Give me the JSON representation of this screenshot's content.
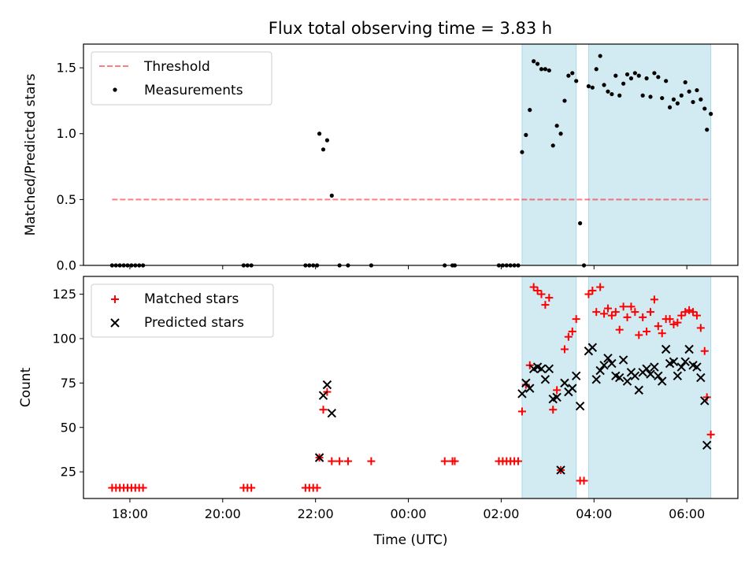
{
  "chart_data": {
    "type": "scatter",
    "title": "Flux total observing time = 3.83 h",
    "xlabel": "Time (UTC)",
    "xticks": [
      "18:00",
      "20:00",
      "22:00",
      "00:00",
      "02:00",
      "04:00",
      "06:00"
    ],
    "shaded_intervals": [
      [
        "02:27",
        "03:37"
      ],
      [
        "03:53",
        "06:31"
      ]
    ],
    "colors": {
      "shade": "#add8e6",
      "threshold": "#ff0000",
      "matched": "#ff0000",
      "predicted": "#000000",
      "measurements": "#000000"
    },
    "panels": [
      {
        "ylabel": "Matched/Predicted stars",
        "ylim": [
          0,
          1.68
        ],
        "yticks": [
          "0.0",
          "0.5",
          "1.0",
          "1.5"
        ],
        "legend_position": "upper-left",
        "series": [
          {
            "name": "Threshold",
            "kind": "dashed-line",
            "y": 0.5,
            "x_range": [
              "17:37",
              "06:31"
            ]
          },
          {
            "name": "Measurements",
            "kind": "scatter",
            "points": [
              [
                "17:37",
                0
              ],
              [
                "17:42",
                0
              ],
              [
                "17:47",
                0
              ],
              [
                "17:52",
                0
              ],
              [
                "17:57",
                0
              ],
              [
                "18:02",
                0
              ],
              [
                "18:07",
                0
              ],
              [
                "18:12",
                0
              ],
              [
                "18:17",
                0
              ],
              [
                "20:27",
                0
              ],
              [
                "20:32",
                0
              ],
              [
                "20:37",
                0
              ],
              [
                "21:47",
                0
              ],
              [
                "21:52",
                0
              ],
              [
                "21:57",
                0
              ],
              [
                "22:02",
                0
              ],
              [
                "22:05",
                1.0
              ],
              [
                "22:10",
                0.88
              ],
              [
                "22:15",
                0.95
              ],
              [
                "22:21",
                0.53
              ],
              [
                "22:31",
                0
              ],
              [
                "22:42",
                0
              ],
              [
                "23:12",
                0
              ],
              [
                "00:47",
                0
              ],
              [
                "00:57",
                0
              ],
              [
                "01:00",
                0
              ],
              [
                "01:57",
                0
              ],
              [
                "02:02",
                0
              ],
              [
                "02:07",
                0
              ],
              [
                "02:12",
                0
              ],
              [
                "02:17",
                0
              ],
              [
                "02:22",
                0
              ],
              [
                "02:27",
                0.86
              ],
              [
                "02:32",
                0.99
              ],
              [
                "02:37",
                1.18
              ],
              [
                "02:42",
                1.55
              ],
              [
                "02:47",
                1.53
              ],
              [
                "02:52",
                1.49
              ],
              [
                "02:57",
                1.49
              ],
              [
                "03:02",
                1.48
              ],
              [
                "03:07",
                0.91
              ],
              [
                "03:12",
                1.06
              ],
              [
                "03:17",
                1.0
              ],
              [
                "03:22",
                1.25
              ],
              [
                "03:27",
                1.44
              ],
              [
                "03:32",
                1.46
              ],
              [
                "03:37",
                1.4
              ],
              [
                "03:42",
                0.32
              ],
              [
                "03:47",
                0.0
              ],
              [
                "03:53",
                1.36
              ],
              [
                "03:58",
                1.35
              ],
              [
                "04:03",
                1.49
              ],
              [
                "04:08",
                1.59
              ],
              [
                "04:13",
                1.37
              ],
              [
                "04:18",
                1.32
              ],
              [
                "04:23",
                1.3
              ],
              [
                "04:28",
                1.44
              ],
              [
                "04:33",
                1.29
              ],
              [
                "04:38",
                1.38
              ],
              [
                "04:43",
                1.45
              ],
              [
                "04:48",
                1.42
              ],
              [
                "04:53",
                1.46
              ],
              [
                "04:58",
                1.44
              ],
              [
                "05:03",
                1.29
              ],
              [
                "05:08",
                1.42
              ],
              [
                "05:13",
                1.28
              ],
              [
                "05:18",
                1.46
              ],
              [
                "05:23",
                1.43
              ],
              [
                "05:28",
                1.27
              ],
              [
                "05:33",
                1.4
              ],
              [
                "05:38",
                1.2
              ],
              [
                "05:43",
                1.26
              ],
              [
                "05:48",
                1.23
              ],
              [
                "05:53",
                1.29
              ],
              [
                "05:58",
                1.39
              ],
              [
                "06:03",
                1.32
              ],
              [
                "06:08",
                1.24
              ],
              [
                "06:13",
                1.33
              ],
              [
                "06:18",
                1.26
              ],
              [
                "06:23",
                1.19
              ],
              [
                "06:26",
                1.03
              ],
              [
                "06:31",
                1.15
              ]
            ]
          }
        ]
      },
      {
        "ylabel": "Count",
        "ylim": [
          10,
          135
        ],
        "yticks": [
          "25",
          "50",
          "75",
          "100",
          "125"
        ],
        "legend_position": "upper-left",
        "series": [
          {
            "name": "Matched stars",
            "marker": "+",
            "points": [
              [
                "17:37",
                16
              ],
              [
                "17:42",
                16
              ],
              [
                "17:47",
                16
              ],
              [
                "17:52",
                16
              ],
              [
                "17:57",
                16
              ],
              [
                "18:02",
                16
              ],
              [
                "18:07",
                16
              ],
              [
                "18:12",
                16
              ],
              [
                "18:17",
                16
              ],
              [
                "20:27",
                16
              ],
              [
                "20:32",
                16
              ],
              [
                "20:37",
                16
              ],
              [
                "21:47",
                16
              ],
              [
                "21:52",
                16
              ],
              [
                "21:57",
                16
              ],
              [
                "22:02",
                16
              ],
              [
                "22:05",
                33
              ],
              [
                "22:10",
                60
              ],
              [
                "22:15",
                70
              ],
              [
                "22:21",
                31
              ],
              [
                "22:31",
                31
              ],
              [
                "22:42",
                31
              ],
              [
                "23:12",
                31
              ],
              [
                "00:47",
                31
              ],
              [
                "00:57",
                31
              ],
              [
                "01:00",
                31
              ],
              [
                "01:57",
                31
              ],
              [
                "02:02",
                31
              ],
              [
                "02:07",
                31
              ],
              [
                "02:12",
                31
              ],
              [
                "02:17",
                31
              ],
              [
                "02:22",
                31
              ],
              [
                "02:27",
                59
              ],
              [
                "02:32",
                74
              ],
              [
                "02:37",
                85
              ],
              [
                "02:42",
                129
              ],
              [
                "02:47",
                127
              ],
              [
                "02:52",
                125
              ],
              [
                "02:57",
                119
              ],
              [
                "03:02",
                123
              ],
              [
                "03:07",
                60
              ],
              [
                "03:12",
                71
              ],
              [
                "03:17",
                26
              ],
              [
                "03:22",
                94
              ],
              [
                "03:27",
                101
              ],
              [
                "03:32",
                104
              ],
              [
                "03:37",
                111
              ],
              [
                "03:42",
                20
              ],
              [
                "03:47",
                20
              ],
              [
                "03:53",
                125
              ],
              [
                "03:58",
                127
              ],
              [
                "04:03",
                115
              ],
              [
                "04:08",
                129
              ],
              [
                "04:13",
                114
              ],
              [
                "04:18",
                117
              ],
              [
                "04:23",
                113
              ],
              [
                "04:28",
                115
              ],
              [
                "04:33",
                105
              ],
              [
                "04:38",
                118
              ],
              [
                "04:43",
                112
              ],
              [
                "04:48",
                118
              ],
              [
                "04:53",
                115
              ],
              [
                "04:58",
                102
              ],
              [
                "05:03",
                112
              ],
              [
                "05:08",
                104
              ],
              [
                "05:13",
                115
              ],
              [
                "05:18",
                122
              ],
              [
                "05:23",
                107
              ],
              [
                "05:28",
                103
              ],
              [
                "05:33",
                111
              ],
              [
                "05:38",
                111
              ],
              [
                "05:43",
                108
              ],
              [
                "05:48",
                109
              ],
              [
                "05:53",
                113
              ],
              [
                "05:58",
                115
              ],
              [
                "06:03",
                116
              ],
              [
                "06:08",
                115
              ],
              [
                "06:13",
                113
              ],
              [
                "06:18",
                106
              ],
              [
                "06:23",
                93
              ],
              [
                "06:26",
                67
              ],
              [
                "06:31",
                46
              ]
            ]
          },
          {
            "name": "Predicted stars",
            "marker": "x",
            "points": [
              [
                "22:05",
                33
              ],
              [
                "22:10",
                68
              ],
              [
                "22:15",
                74
              ],
              [
                "22:21",
                58
              ],
              [
                "02:27",
                69
              ],
              [
                "02:32",
                75
              ],
              [
                "02:37",
                72
              ],
              [
                "02:42",
                83
              ],
              [
                "02:47",
                84
              ],
              [
                "02:52",
                83
              ],
              [
                "02:57",
                77
              ],
              [
                "03:02",
                83
              ],
              [
                "03:07",
                66
              ],
              [
                "03:12",
                67
              ],
              [
                "03:17",
                26
              ],
              [
                "03:22",
                75
              ],
              [
                "03:27",
                70
              ],
              [
                "03:32",
                72
              ],
              [
                "03:37",
                79
              ],
              [
                "03:42",
                62
              ],
              [
                "03:53",
                93
              ],
              [
                "03:58",
                95
              ],
              [
                "04:03",
                77
              ],
              [
                "04:08",
                82
              ],
              [
                "04:13",
                85
              ],
              [
                "04:18",
                89
              ],
              [
                "04:23",
                86
              ],
              [
                "04:28",
                79
              ],
              [
                "04:33",
                78
              ],
              [
                "04:38",
                88
              ],
              [
                "04:43",
                76
              ],
              [
                "04:48",
                81
              ],
              [
                "04:53",
                79
              ],
              [
                "04:58",
                71
              ],
              [
                "05:03",
                81
              ],
              [
                "05:08",
                83
              ],
              [
                "05:13",
                80
              ],
              [
                "05:18",
                84
              ],
              [
                "05:23",
                79
              ],
              [
                "05:28",
                76
              ],
              [
                "05:33",
                94
              ],
              [
                "05:38",
                86
              ],
              [
                "05:43",
                87
              ],
              [
                "05:48",
                79
              ],
              [
                "05:53",
                84
              ],
              [
                "05:58",
                87
              ],
              [
                "06:03",
                94
              ],
              [
                "06:08",
                85
              ],
              [
                "06:13",
                84
              ],
              [
                "06:18",
                78
              ],
              [
                "06:23",
                65
              ],
              [
                "06:26",
                40
              ]
            ]
          }
        ]
      }
    ]
  }
}
